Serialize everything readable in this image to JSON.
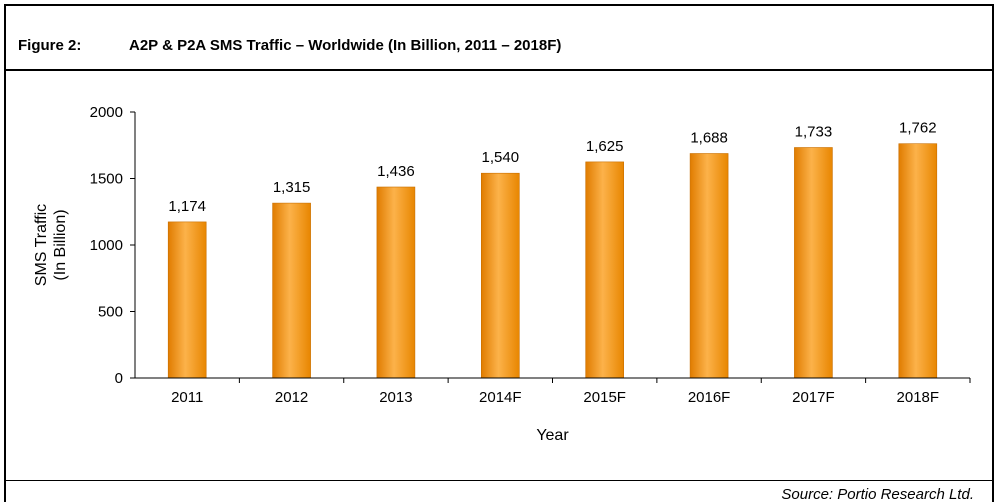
{
  "figure": {
    "prefix": "Figure 2:",
    "title": "A2P & P2A SMS Traffic – Worldwide (In Billion, 2011 – 2018F)",
    "source": "Source: Portio Research Ltd."
  },
  "colors": {
    "bar": "#f7941d",
    "bar_light": "#fbb040",
    "bar_dark": "#d97800",
    "axis": "#000000"
  },
  "chart_data": {
    "type": "bar",
    "title": "",
    "xlabel": "Year",
    "ylabel": "SMS Traffic (In Billion)",
    "ylabel_lines": [
      "SMS Traffic",
      "(In Billion)"
    ],
    "categories": [
      "2011",
      "2012",
      "2013",
      "2014F",
      "2015F",
      "2016F",
      "2017F",
      "2018F"
    ],
    "values": [
      1174,
      1315,
      1436,
      1540,
      1625,
      1688,
      1733,
      1762
    ],
    "value_labels": [
      "1,174",
      "1,315",
      "1,436",
      "1,540",
      "1,625",
      "1,688",
      "1,733",
      "1,762"
    ],
    "yticks": [
      0,
      500,
      1000,
      1500,
      2000
    ],
    "ytick_labels": [
      "0",
      "500",
      "1000",
      "1500",
      "2000"
    ],
    "ylim": [
      0,
      2000
    ],
    "grid": false,
    "legend": "none"
  }
}
